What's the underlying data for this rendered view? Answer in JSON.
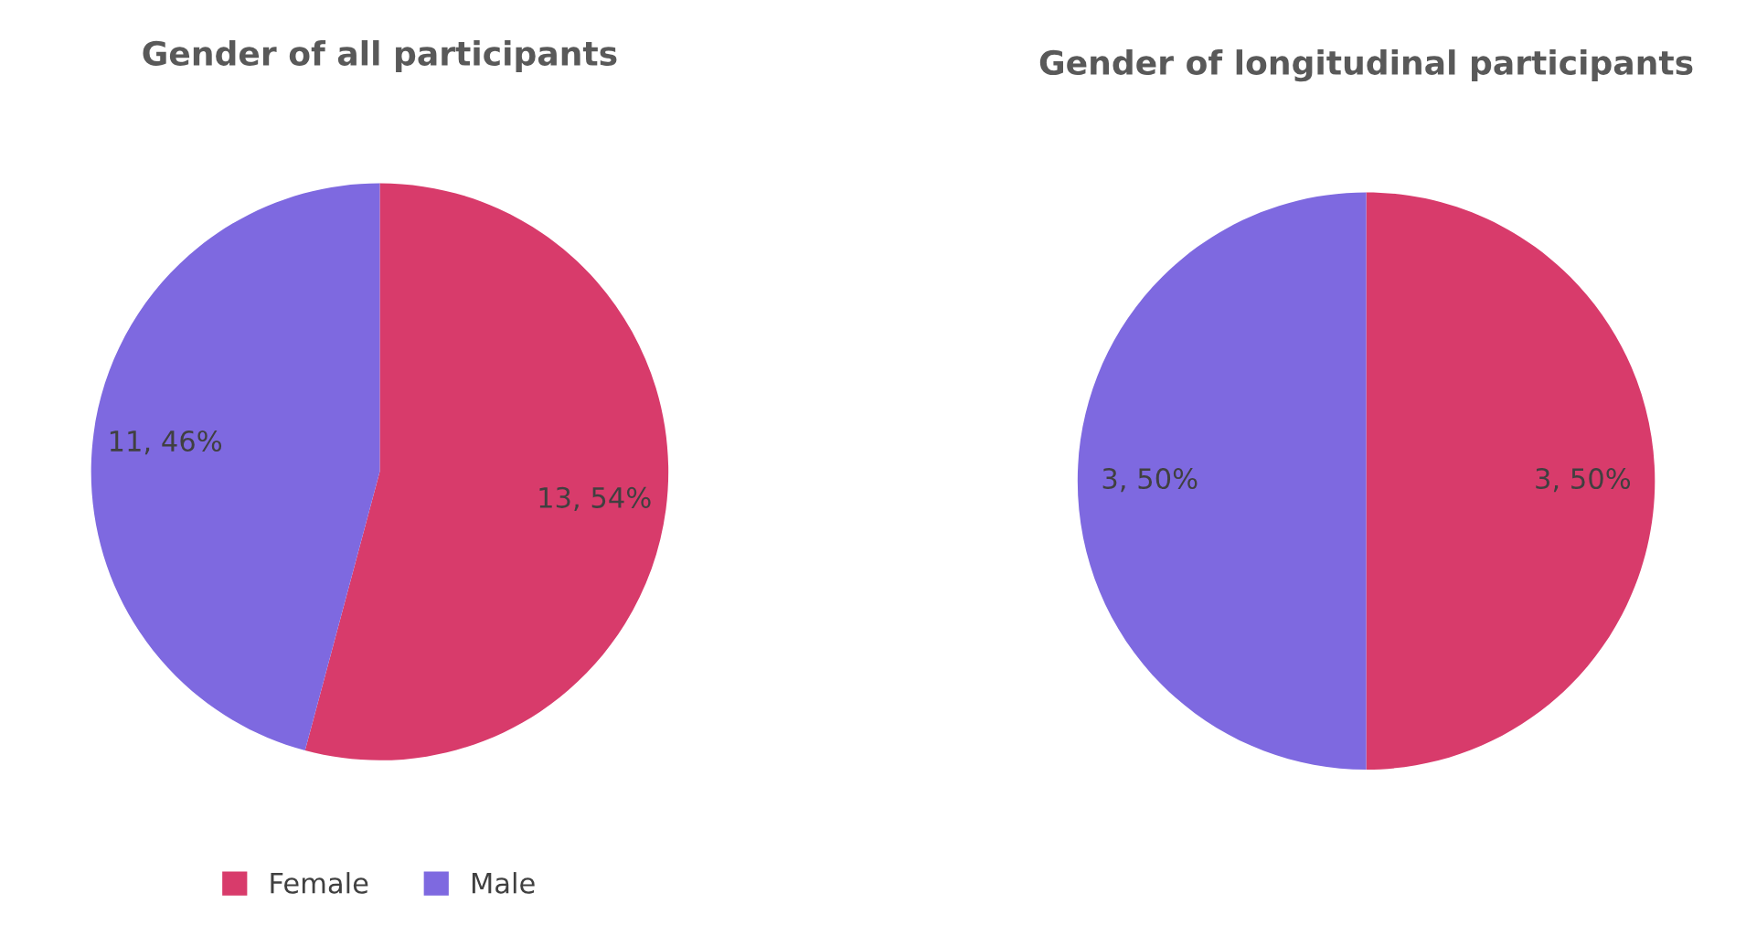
{
  "chart_data": [
    {
      "type": "pie",
      "title": "Gender of all participants",
      "categories": [
        "Female",
        "Male"
      ],
      "values": [
        13,
        11
      ],
      "colors": [
        "#d83b6b",
        "#7e69e0"
      ],
      "value_labels": [
        "13, 54%",
        "11, 46%"
      ],
      "legend": "bottom"
    },
    {
      "type": "pie",
      "title": "Gender of longitudinal participants",
      "categories": [
        null,
        null
      ],
      "values": [
        3,
        3
      ],
      "colors": [
        "#d83b6b",
        "#7e69e0"
      ],
      "value_labels": [
        "3, 50%",
        "3, 50%"
      ]
    }
  ]
}
